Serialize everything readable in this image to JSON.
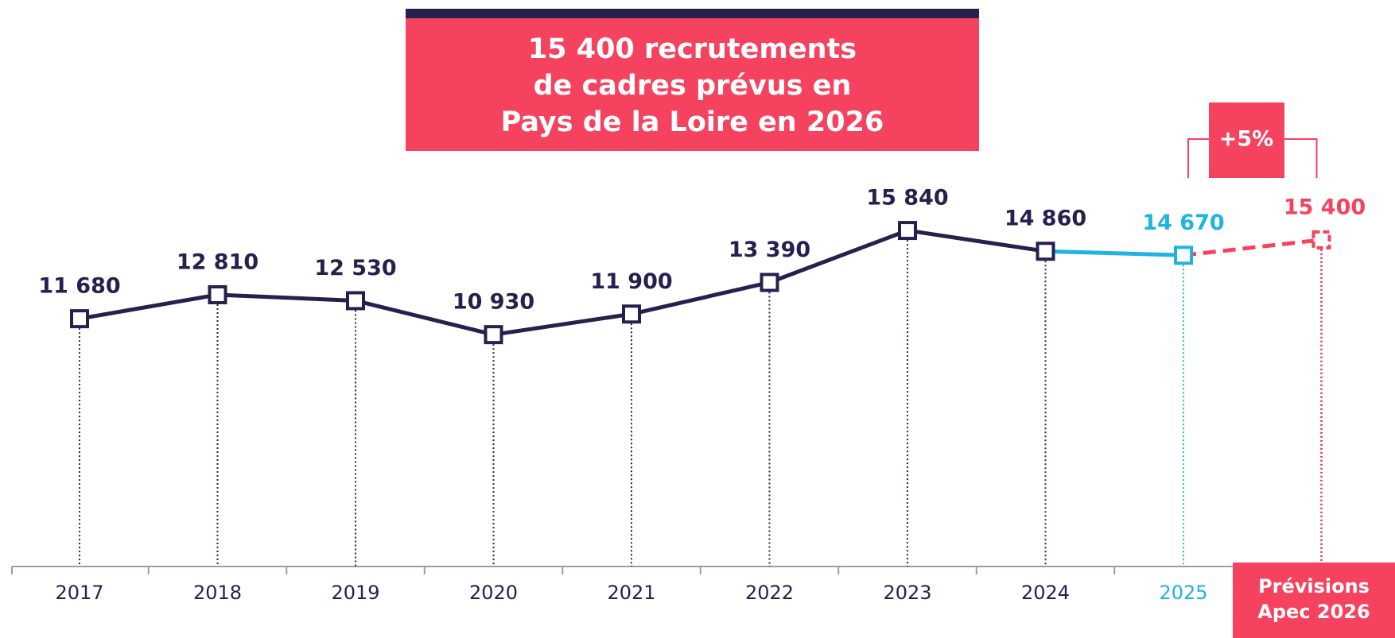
{
  "chart_data": {
    "type": "line",
    "title": [
      "15 400 recrutements",
      "de cadres prévus en",
      "Pays de la Loire en 2026"
    ],
    "categories": [
      "2017",
      "2018",
      "2019",
      "2020",
      "2021",
      "2022",
      "2023",
      "2024",
      "2025",
      "Prévisions Apec 2026"
    ],
    "values": [
      11680,
      12810,
      12530,
      10930,
      11900,
      13390,
      15840,
      14860,
      14670,
      15400
    ],
    "value_labels": [
      "11 680",
      "12 810",
      "12 530",
      "10 930",
      "11 900",
      "13 390",
      "15 840",
      "14 860",
      "14 670",
      "15 400"
    ],
    "colors": [
      "#24214f",
      "#24214f",
      "#24214f",
      "#24214f",
      "#24214f",
      "#24214f",
      "#24214f",
      "#24214f",
      "#1fb3e0",
      "#f5425f"
    ],
    "line_styles": [
      "solid",
      "solid",
      "solid",
      "solid",
      "solid",
      "solid",
      "solid",
      "solid",
      "solid",
      "dashed"
    ],
    "annotation": "+5%",
    "ylim": [
      0,
      20000
    ]
  }
}
